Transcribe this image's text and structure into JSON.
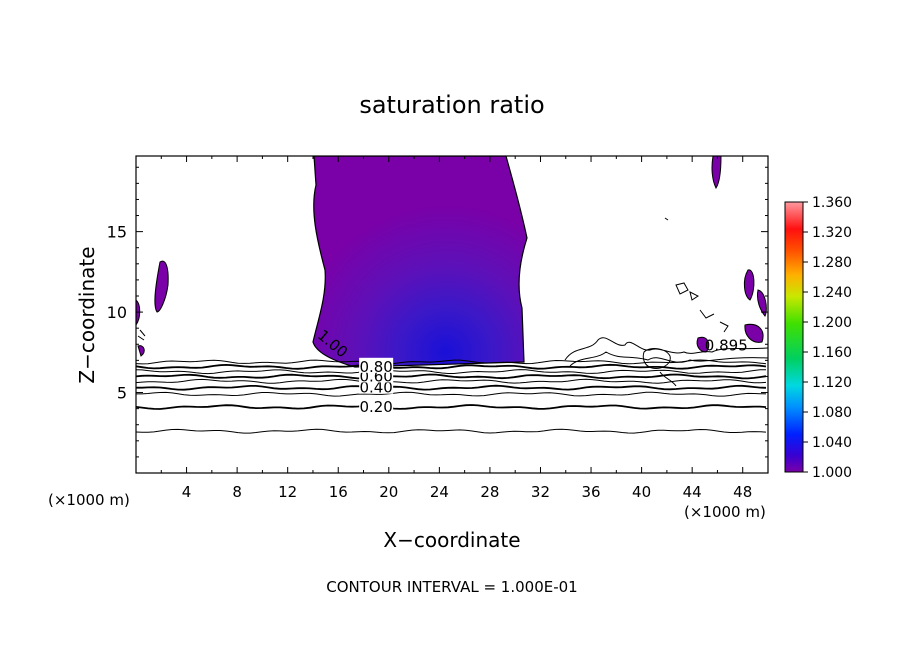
{
  "chart_data": {
    "type": "contour",
    "title": "saturation ratio",
    "xlabel": "X−coordinate",
    "ylabel": "Z−coordinate",
    "x_unit_label": "(×1000 m)",
    "z_unit_label": "(×1000 m)",
    "xlim": [
      0,
      50
    ],
    "ylim": [
      0,
      19.7
    ],
    "x_ticks": [
      4,
      8,
      12,
      16,
      20,
      24,
      28,
      32,
      36,
      40,
      44,
      48
    ],
    "y_ticks": [
      5,
      10,
      15
    ],
    "contour_interval_text": "CONTOUR INTERVAL = 1.000E-01",
    "colorbar": {
      "min": 1.0,
      "max": 1.36,
      "tick_labels": [
        "1.000",
        "1.040",
        "1.080",
        "1.120",
        "1.160",
        "1.200",
        "1.240",
        "1.280",
        "1.320",
        "1.360"
      ]
    },
    "contour_lines": [
      {
        "level": 0.2,
        "label": "0.20",
        "z": 4.1
      },
      {
        "level": 0.1,
        "label": "",
        "z": 2.6
      },
      {
        "level": 0.3,
        "label": "",
        "z": 4.9
      },
      {
        "level": 0.4,
        "label": "0.40",
        "z": 5.3
      },
      {
        "level": 0.5,
        "label": "",
        "z": 5.7
      },
      {
        "level": 0.6,
        "label": "0.60",
        "z": 6.0
      },
      {
        "level": 0.7,
        "label": "",
        "z": 6.3
      },
      {
        "level": 0.8,
        "label": "0.80",
        "z": 6.6
      },
      {
        "level": 0.9,
        "label": "",
        "z": 6.9
      }
    ],
    "inline_labels": [
      {
        "text": "1.00",
        "x": 15.3,
        "z": 7.8
      },
      {
        "text": "0.895",
        "x": 46.7,
        "z": 7.6
      }
    ],
    "supersaturated_regions": [
      {
        "name": "main-plume",
        "x_range": [
          13.9,
          30.9
        ],
        "z_range": [
          6.6,
          19.7
        ]
      },
      {
        "name": "left-blob",
        "x_range": [
          1.4,
          2.6
        ],
        "z_range": [
          10.0,
          13.3
        ]
      }
    ],
    "colors": {
      "region_purple": "#7b00a8",
      "region_mid": "#5a12bb",
      "region_core": "#2b14cc"
    }
  }
}
